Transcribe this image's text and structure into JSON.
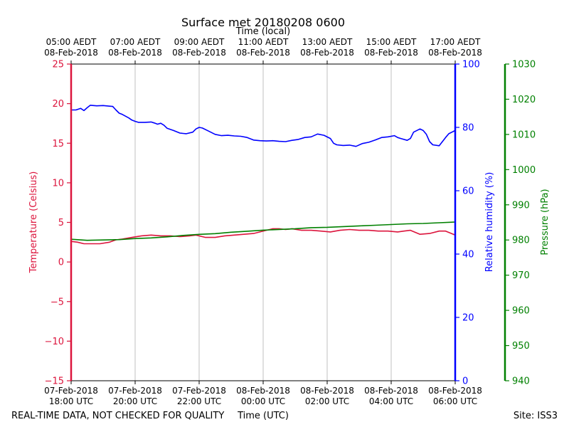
{
  "chart_data": {
    "type": "line",
    "title": "Surface met 20180208 0600",
    "top_axis_label": "Time (local)",
    "xlabel": "Time (UTC)",
    "footer_left": "REAL-TIME DATA, NOT CHECKED FOR QUALITY",
    "footer_right": "Site: ISS3",
    "x_unit": "hours after 07-Feb-2018 18:00 UTC",
    "xlim": [
      0,
      12
    ],
    "grid_x": true,
    "bottom_ticks": [
      {
        "x": 0,
        "line1": "07-Feb-2018",
        "line2": "18:00 UTC"
      },
      {
        "x": 2,
        "line1": "07-Feb-2018",
        "line2": "20:00 UTC"
      },
      {
        "x": 4,
        "line1": "07-Feb-2018",
        "line2": "22:00 UTC"
      },
      {
        "x": 6,
        "line1": "08-Feb-2018",
        "line2": "00:00 UTC"
      },
      {
        "x": 8,
        "line1": "08-Feb-2018",
        "line2": "02:00 UTC"
      },
      {
        "x": 10,
        "line1": "08-Feb-2018",
        "line2": "04:00 UTC"
      },
      {
        "x": 12,
        "line1": "08-Feb-2018",
        "line2": "06:00 UTC"
      }
    ],
    "top_ticks": [
      {
        "x": 0,
        "line1": "05:00 AEDT",
        "line2": "08-Feb-2018"
      },
      {
        "x": 2,
        "line1": "07:00 AEDT",
        "line2": "08-Feb-2018"
      },
      {
        "x": 4,
        "line1": "09:00 AEDT",
        "line2": "08-Feb-2018"
      },
      {
        "x": 6,
        "line1": "11:00 AEDT",
        "line2": "08-Feb-2018"
      },
      {
        "x": 8,
        "line1": "13:00 AEDT",
        "line2": "08-Feb-2018"
      },
      {
        "x": 10,
        "line1": "15:00 AEDT",
        "line2": "08-Feb-2018"
      },
      {
        "x": 12,
        "line1": "17:00 AEDT",
        "line2": "08-Feb-2018"
      }
    ],
    "axes": {
      "temperature": {
        "label": "Temperature (Celsius)",
        "ylim": [
          -15,
          25
        ],
        "ticks": [
          25,
          20,
          15,
          10,
          5,
          0,
          -5,
          -10,
          -15
        ],
        "tick_labels": [
          "25",
          "20",
          "15",
          "10",
          "5",
          "0",
          "−5",
          "−10",
          "−15"
        ],
        "color": "#dc143c"
      },
      "humidity": {
        "label": "Relative humidity (%)",
        "ylim": [
          0,
          100
        ],
        "ticks": [
          100,
          80,
          60,
          40,
          20,
          0
        ],
        "tick_labels": [
          "100",
          "80",
          "60",
          "40",
          "20",
          "0"
        ],
        "color": "#0000ff"
      },
      "pressure": {
        "label": "Pressure (hPa)",
        "ylim": [
          940,
          1030
        ],
        "ticks": [
          1030,
          1020,
          1010,
          1000,
          990,
          980,
          970,
          960,
          950,
          940
        ],
        "tick_labels": [
          "1030",
          "1020",
          "1010",
          "1000",
          "990",
          "980",
          "970",
          "960",
          "950",
          "940"
        ],
        "color": "#008000"
      }
    },
    "series": [
      {
        "name": "Temperature",
        "axis": "temperature",
        "color": "#dc143c",
        "x": [
          0,
          0.2,
          0.4,
          0.6,
          0.9,
          1.2,
          1.4,
          1.6,
          1.9,
          2.2,
          2.5,
          2.8,
          3.1,
          3.4,
          3.7,
          3.9,
          4.2,
          4.5,
          4.8,
          5.1,
          5.4,
          5.7,
          5.9,
          6.1,
          6.3,
          6.5,
          6.7,
          6.9,
          7.2,
          7.5,
          7.8,
          8.1,
          8.4,
          8.7,
          9.0,
          9.3,
          9.6,
          9.9,
          10.2,
          10.4,
          10.6,
          10.9,
          11.2,
          11.5,
          11.7,
          12.0
        ],
        "values": [
          2.6,
          2.5,
          2.3,
          2.3,
          2.3,
          2.5,
          2.8,
          2.9,
          3.1,
          3.3,
          3.4,
          3.3,
          3.3,
          3.2,
          3.3,
          3.4,
          3.1,
          3.1,
          3.3,
          3.4,
          3.5,
          3.6,
          3.8,
          4.0,
          4.2,
          4.2,
          4.1,
          4.2,
          4.0,
          4.0,
          3.9,
          3.8,
          4.0,
          4.1,
          4.0,
          4.0,
          3.9,
          3.9,
          3.8,
          3.9,
          4.0,
          3.5,
          3.6,
          3.9,
          3.9,
          3.4
        ],
        "extra_x": [
          12.0
        ],
        "extra_values": [
          3.4
        ]
      },
      {
        "name": "Relative humidity",
        "axis": "humidity",
        "color": "#0000ff",
        "x": [
          0,
          0.15,
          0.3,
          0.4,
          0.5,
          0.6,
          0.8,
          1.0,
          1.2,
          1.3,
          1.4,
          1.5,
          1.6,
          1.8,
          1.9,
          2.0,
          2.1,
          2.3,
          2.5,
          2.6,
          2.7,
          2.8,
          2.9,
          3.0,
          3.2,
          3.4,
          3.5,
          3.6,
          3.8,
          3.9,
          4.0,
          4.1,
          4.3,
          4.5,
          4.7,
          4.9,
          5.1,
          5.3,
          5.5,
          5.7,
          5.9,
          6.1,
          6.3,
          6.5,
          6.7,
          6.9,
          7.1,
          7.3,
          7.5,
          7.7,
          7.9,
          8.1,
          8.2,
          8.3,
          8.5,
          8.7,
          8.9,
          9.1,
          9.3,
          9.5,
          9.7,
          9.9,
          10.1,
          10.2,
          10.3,
          10.5,
          10.6,
          10.7,
          10.9,
          11.0,
          11.1,
          11.2,
          11.3,
          11.5,
          11.7,
          11.8,
          12.0
        ],
        "values": [
          85.5,
          85.5,
          86.0,
          85.3,
          86.2,
          87.0,
          86.8,
          86.9,
          86.7,
          86.6,
          85.5,
          84.5,
          84.1,
          83.0,
          82.3,
          81.9,
          81.6,
          81.6,
          81.7,
          81.4,
          81.0,
          81.3,
          80.7,
          79.7,
          79.0,
          78.2,
          78.1,
          78.0,
          78.5,
          79.5,
          80.0,
          79.8,
          78.8,
          77.8,
          77.4,
          77.5,
          77.3,
          77.2,
          76.8,
          76.0,
          75.8,
          75.7,
          75.8,
          75.6,
          75.5,
          75.9,
          76.2,
          76.8,
          77.0,
          77.9,
          77.5,
          76.5,
          75.0,
          74.5,
          74.3,
          74.4,
          74.0,
          74.9,
          75.3,
          76.0,
          76.8,
          77.0,
          77.4,
          76.8,
          76.5,
          75.9,
          76.5,
          78.5,
          79.5,
          79.0,
          77.8,
          75.5,
          74.5,
          74.2,
          76.8,
          78.0,
          79.0
        ],
        "extra_x": [
          12.0
        ],
        "extra_values": [
          79.0
        ]
      },
      {
        "name": "Pressure",
        "axis": "pressure",
        "color": "#008000",
        "x": [
          0,
          0.5,
          1.0,
          1.5,
          2.0,
          2.5,
          3.0,
          3.5,
          4.0,
          4.5,
          5.0,
          5.5,
          6.0,
          6.5,
          7.0,
          7.5,
          8.0,
          8.5,
          9.0,
          9.5,
          10.0,
          10.5,
          11.0,
          11.5,
          12.0
        ],
        "values": [
          980.2,
          979.9,
          980.0,
          980.1,
          980.4,
          980.6,
          980.9,
          981.3,
          981.6,
          981.8,
          982.2,
          982.5,
          982.8,
          983.0,
          983.2,
          983.5,
          983.6,
          983.8,
          984.0,
          984.2,
          984.4,
          984.6,
          984.7,
          984.9,
          985.1
        ],
        "extra_x": [
          12.0
        ],
        "extra_values": [
          985.1
        ]
      }
    ]
  }
}
